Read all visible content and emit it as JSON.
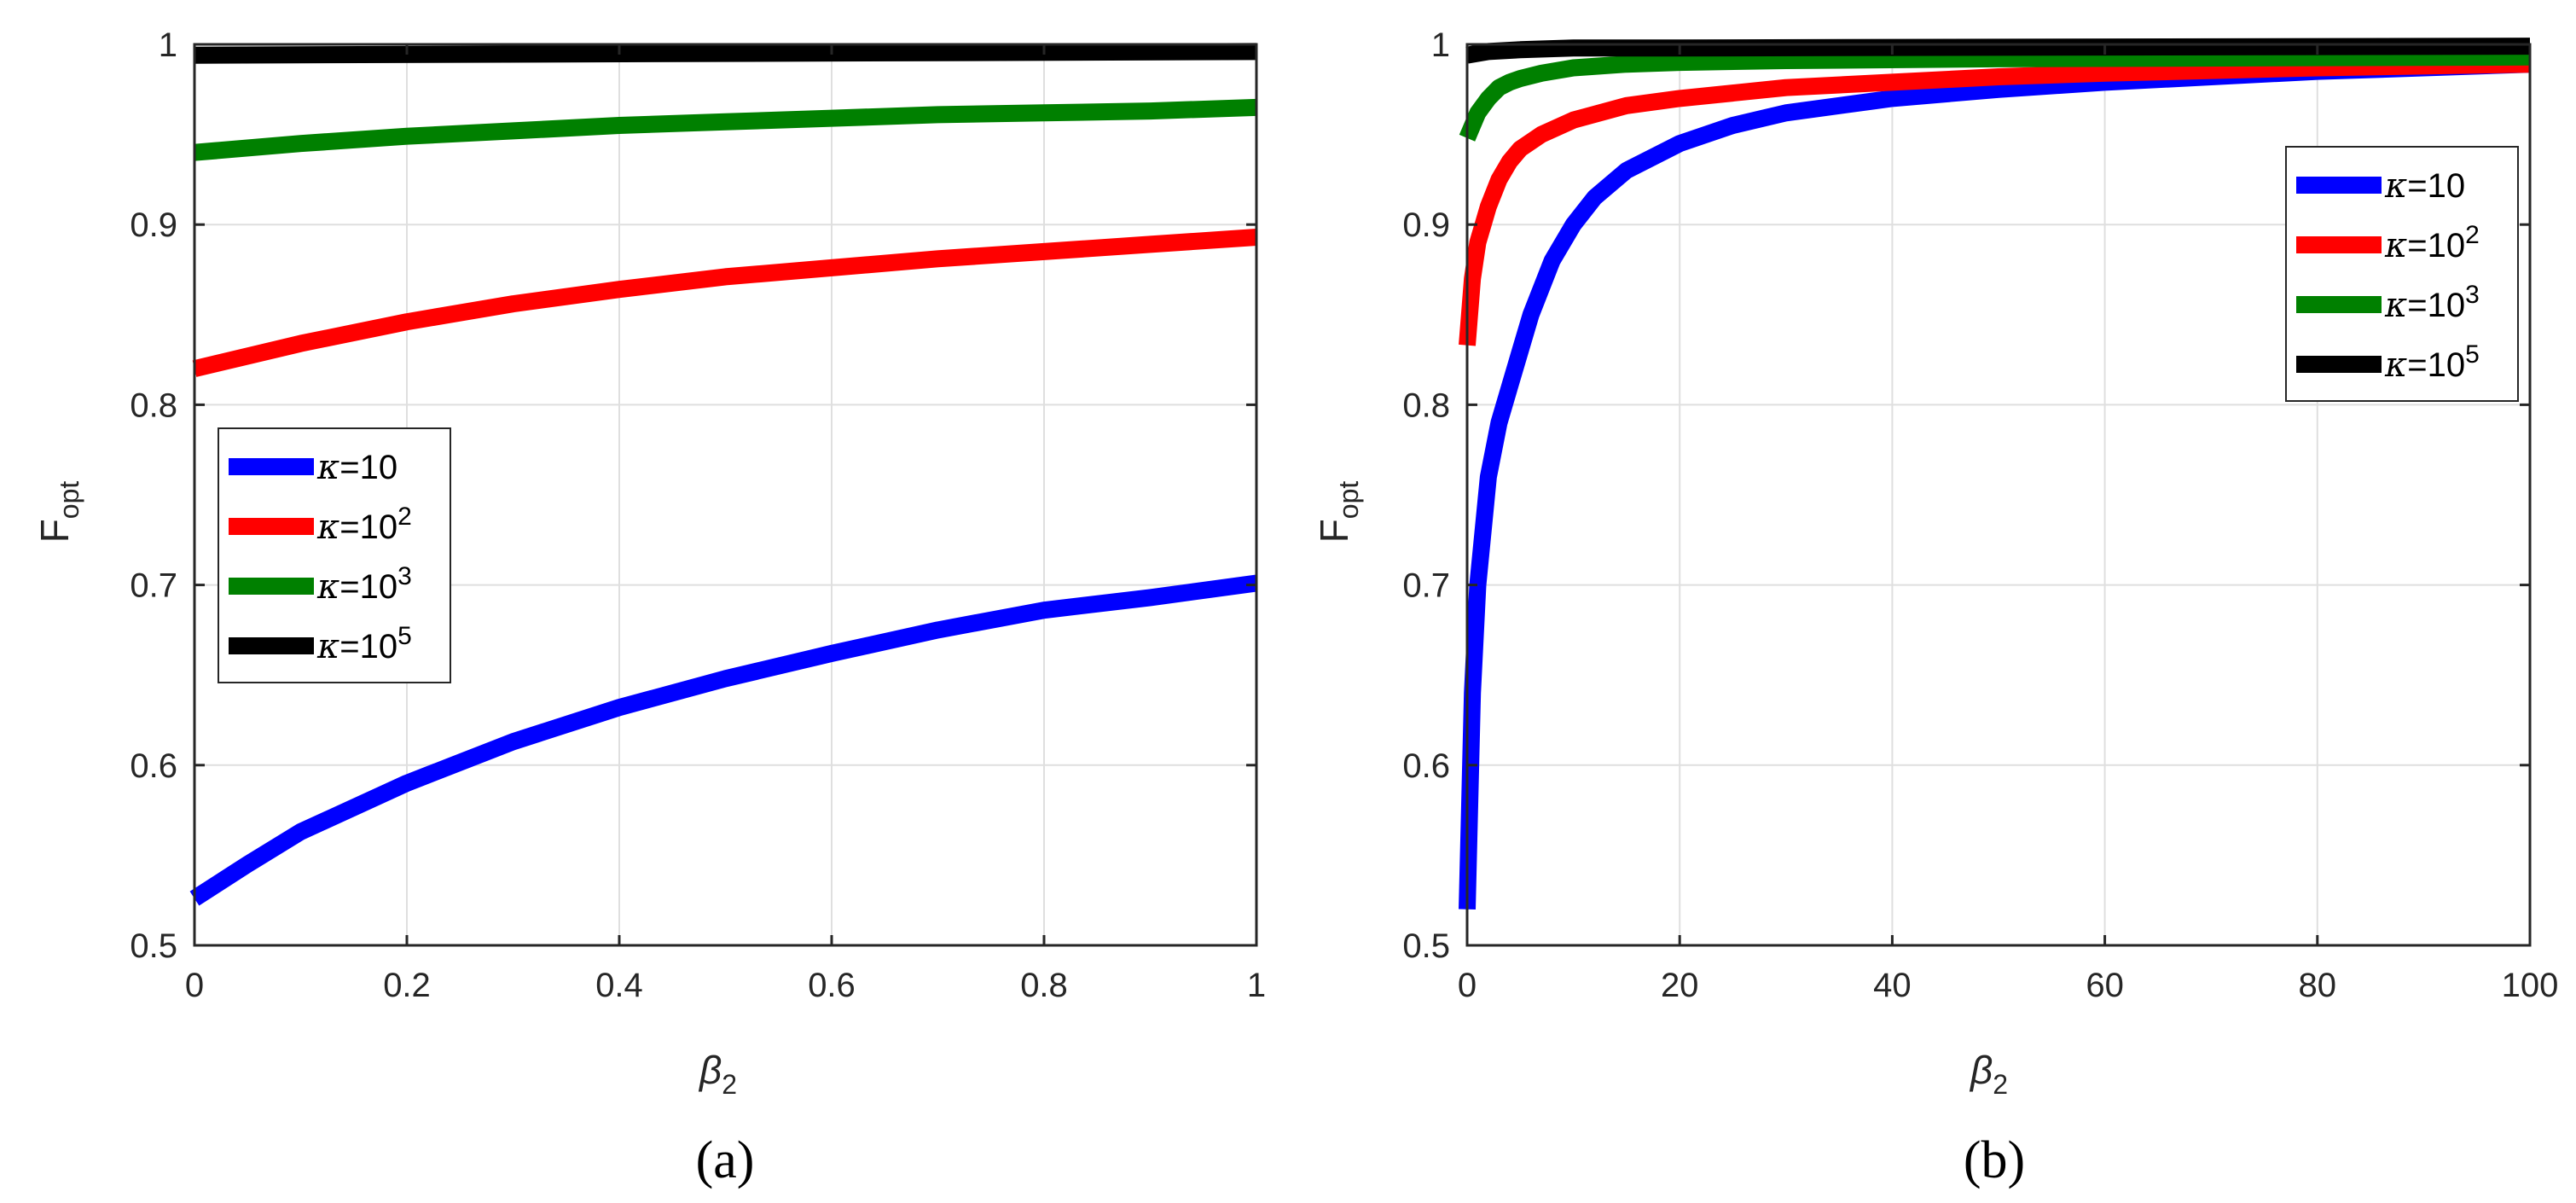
{
  "chart_data": [
    {
      "type": "line",
      "panel_label": "(a)",
      "xlabel": "β",
      "xlabel_sub": "2",
      "ylabel": "F",
      "ylabel_sub": "opt",
      "xlim": [
        0,
        1
      ],
      "ylim": [
        0.5,
        1
      ],
      "xticks": [
        0,
        0.2,
        0.4,
        0.6,
        0.8,
        1
      ],
      "xtick_labels": [
        "0",
        "0.2",
        "0.4",
        "0.6",
        "0.8",
        "1"
      ],
      "yticks": [
        0.5,
        0.6,
        0.7,
        0.8,
        0.9,
        1
      ],
      "ytick_labels": [
        "0.5",
        "0.6",
        "0.7",
        "0.8",
        "0.9",
        "1"
      ],
      "grid": true,
      "legend_position": "center-left",
      "series": [
        {
          "name": "κ=10",
          "legend_base": "κ=10",
          "legend_sup": "",
          "color": "#0000ff",
          "x": [
            0,
            0.05,
            0.1,
            0.2,
            0.3,
            0.4,
            0.5,
            0.6,
            0.7,
            0.8,
            0.9,
            1.0
          ],
          "y": [
            0.526,
            0.545,
            0.563,
            0.59,
            0.613,
            0.632,
            0.648,
            0.662,
            0.675,
            0.686,
            0.693,
            0.701
          ]
        },
        {
          "name": "κ=10^2",
          "legend_base": "κ=10",
          "legend_sup": "2",
          "color": "#ff0000",
          "x": [
            0,
            0.1,
            0.2,
            0.3,
            0.4,
            0.5,
            0.6,
            0.7,
            0.8,
            0.9,
            1.0
          ],
          "y": [
            0.82,
            0.834,
            0.846,
            0.856,
            0.864,
            0.871,
            0.876,
            0.881,
            0.885,
            0.889,
            0.893
          ]
        },
        {
          "name": "κ=10^3",
          "legend_base": "κ=10",
          "legend_sup": "3",
          "color": "#008000",
          "x": [
            0,
            0.1,
            0.2,
            0.3,
            0.4,
            0.5,
            0.6,
            0.7,
            0.8,
            0.9,
            1.0
          ],
          "y": [
            0.94,
            0.945,
            0.949,
            0.952,
            0.955,
            0.957,
            0.959,
            0.961,
            0.962,
            0.963,
            0.965
          ]
        },
        {
          "name": "κ=10^5",
          "legend_base": "κ=10",
          "legend_sup": "5",
          "color": "#000000",
          "x": [
            0,
            0.5,
            1.0
          ],
          "y": [
            0.994,
            0.995,
            0.996
          ]
        }
      ]
    },
    {
      "type": "line",
      "panel_label": "(b)",
      "xlabel": "β",
      "xlabel_sub": "2",
      "ylabel": "F",
      "ylabel_sub": "opt",
      "xlim": [
        0,
        100
      ],
      "ylim": [
        0.5,
        1
      ],
      "xticks": [
        0,
        20,
        40,
        60,
        80,
        100
      ],
      "xtick_labels": [
        "0",
        "20",
        "40",
        "60",
        "80",
        "100"
      ],
      "yticks": [
        0.5,
        0.6,
        0.7,
        0.8,
        0.9,
        1
      ],
      "ytick_labels": [
        "0.5",
        "0.6",
        "0.7",
        "0.8",
        "0.9",
        "1"
      ],
      "grid": true,
      "legend_position": "top-right",
      "series": [
        {
          "name": "κ=10",
          "legend_base": "κ=10",
          "legend_sup": "",
          "color": "#0000ff",
          "x": [
            0,
            0.5,
            1,
            2,
            3,
            4,
            5,
            6,
            8,
            10,
            12,
            15,
            20,
            25,
            30,
            40,
            50,
            60,
            70,
            80,
            90,
            100
          ],
          "y": [
            0.52,
            0.64,
            0.7,
            0.76,
            0.79,
            0.81,
            0.83,
            0.85,
            0.88,
            0.9,
            0.915,
            0.93,
            0.945,
            0.955,
            0.962,
            0.97,
            0.975,
            0.979,
            0.982,
            0.985,
            0.987,
            0.989
          ]
        },
        {
          "name": "κ=10^2",
          "legend_base": "κ=10",
          "legend_sup": "2",
          "color": "#ff0000",
          "x": [
            0,
            0.5,
            1,
            2,
            3,
            4,
            5,
            7,
            10,
            15,
            20,
            30,
            40,
            50,
            60,
            80,
            100
          ],
          "y": [
            0.833,
            0.87,
            0.89,
            0.91,
            0.925,
            0.935,
            0.942,
            0.95,
            0.958,
            0.966,
            0.97,
            0.976,
            0.979,
            0.982,
            0.984,
            0.987,
            0.989
          ]
        },
        {
          "name": "κ=10^3",
          "legend_base": "κ=10",
          "legend_sup": "3",
          "color": "#008000",
          "x": [
            0,
            1,
            2,
            3,
            4,
            5,
            7,
            10,
            15,
            20,
            30,
            50,
            100
          ],
          "y": [
            0.948,
            0.962,
            0.97,
            0.976,
            0.979,
            0.981,
            0.984,
            0.987,
            0.989,
            0.99,
            0.991,
            0.992,
            0.993
          ]
        },
        {
          "name": "κ=10^5",
          "legend_base": "κ=10",
          "legend_sup": "5",
          "color": "#000000",
          "x": [
            0,
            2,
            5,
            10,
            20,
            100
          ],
          "y": [
            0.994,
            0.996,
            0.997,
            0.998,
            0.998,
            0.999
          ]
        }
      ]
    }
  ]
}
